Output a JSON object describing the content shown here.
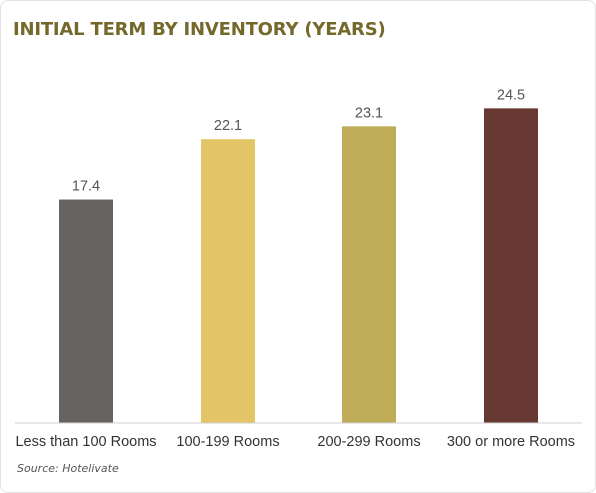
{
  "chart_data": {
    "type": "bar",
    "title": "INITIAL TERM BY INVENTORY (YEARS)",
    "xlabel": "",
    "ylabel": "",
    "categories": [
      "Less than 100 Rooms",
      "100-199 Rooms",
      "200-299 Rooms",
      "300 or more Rooms"
    ],
    "values": [
      17.4,
      22.1,
      23.1,
      24.5
    ],
    "data_labels": [
      "17.4",
      "22.1",
      "23.1",
      "24.5"
    ],
    "colors": [
      "#666461",
      "#e3c466",
      "#bfac56",
      "#683833"
    ],
    "ylim": [
      0,
      28.5
    ],
    "grid": false,
    "legend": "none"
  },
  "footer": {
    "source": "Source: Hotelivate"
  }
}
